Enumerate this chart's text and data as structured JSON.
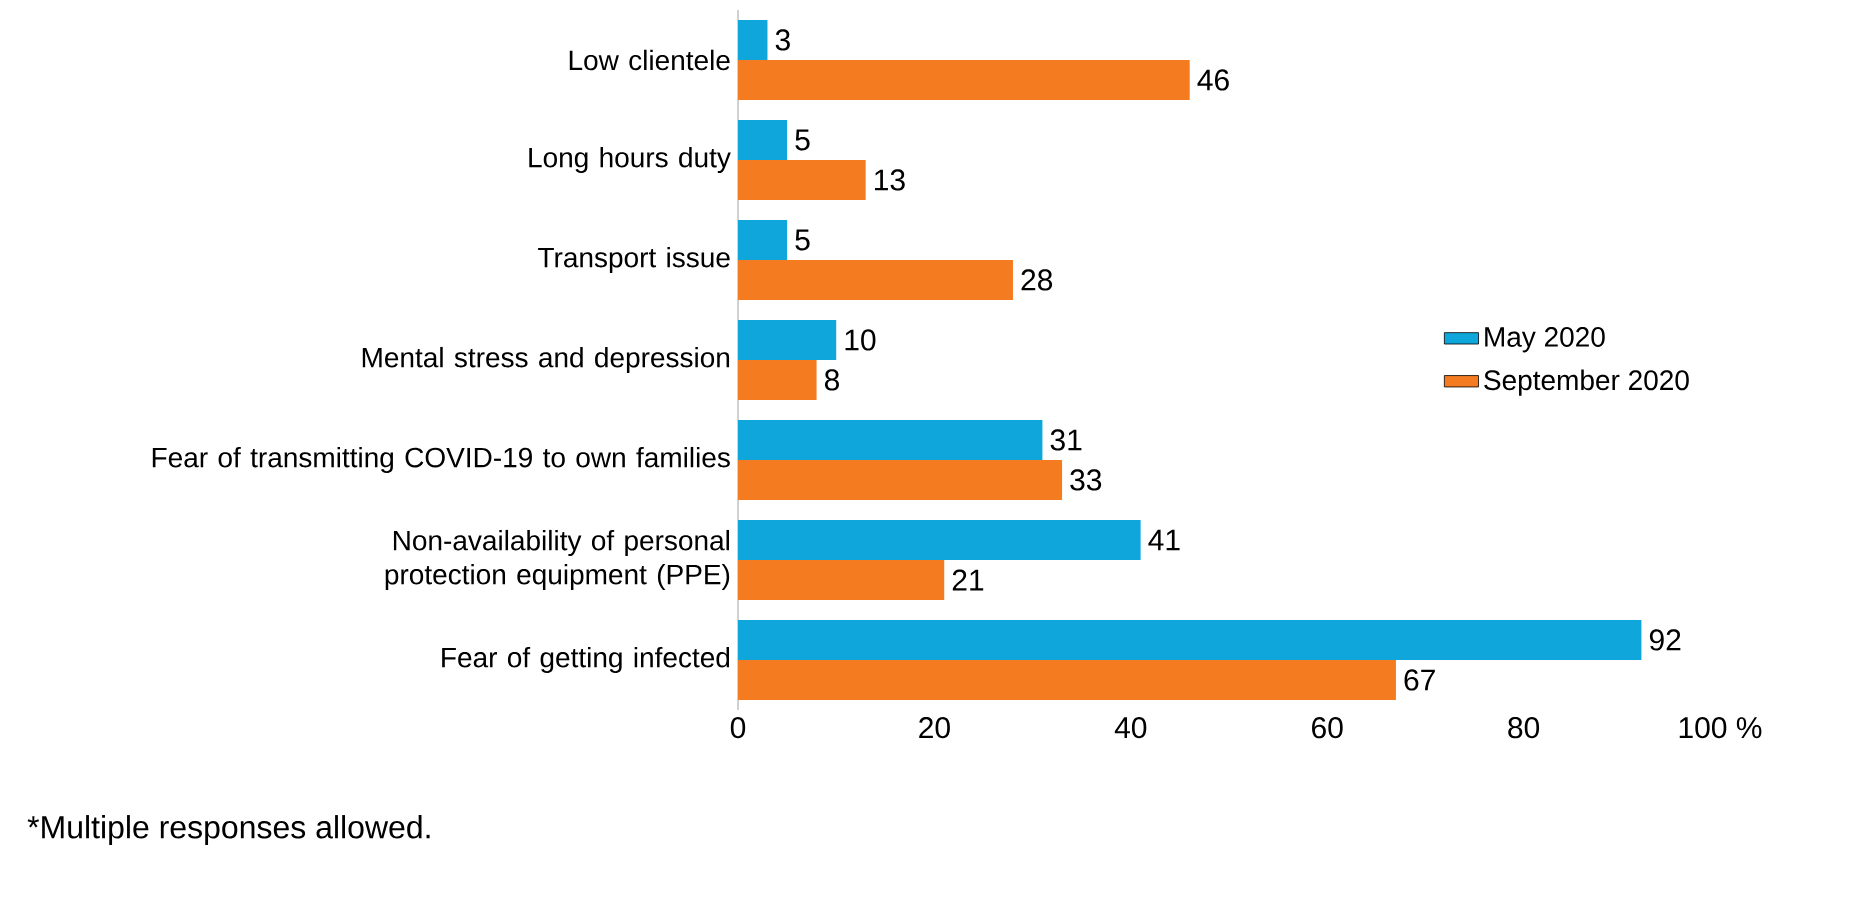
{
  "chart_data": {
    "type": "bar",
    "orientation": "horizontal",
    "categories": [
      "Low clientele",
      "Long hours duty",
      "Transport issue",
      "Mental stress and depression",
      "Fear of transmitting COVID-19 to own families",
      "Non-availability of personal protection equipment (PPE)",
      "Fear of getting infected"
    ],
    "series": [
      {
        "name": "May 2020",
        "color": "#0fa6dc",
        "values": [
          3,
          5,
          5,
          10,
          31,
          41,
          92
        ]
      },
      {
        "name": "September 2020",
        "color": "#f47b20",
        "values": [
          46,
          13,
          28,
          8,
          33,
          21,
          67
        ]
      }
    ],
    "xlim": [
      0,
      100
    ],
    "xticks": [
      0,
      20,
      40,
      60,
      80,
      {
        "value": 100,
        "label": "100 %"
      }
    ],
    "data_labels": true,
    "legend": "right",
    "grid": false,
    "annotations": [
      "*Multiple responses allowed."
    ]
  }
}
